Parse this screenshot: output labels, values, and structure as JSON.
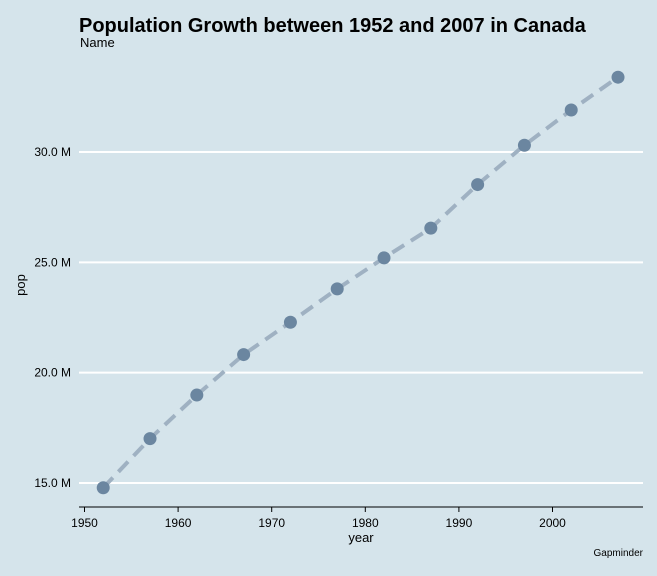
{
  "chart_data": {
    "type": "line",
    "title": "Population Growth between 1952 and 2007 in Canada",
    "legend_title": "Name",
    "caption": "Gapminder",
    "xlabel": "year",
    "ylabel": "pop",
    "x": [
      1952,
      1957,
      1962,
      1967,
      1972,
      1977,
      1982,
      1987,
      1992,
      1997,
      2002,
      2007
    ],
    "series": [
      {
        "values": [
          14785584,
          17010154,
          18985849,
          20819767,
          22284500,
          23796400,
          25201900,
          26549700,
          28523502,
          30305843,
          31902268,
          33390141
        ]
      }
    ],
    "xticks": [
      1950,
      1960,
      1970,
      1980,
      1990,
      2000
    ],
    "xtick_labels": [
      "1950",
      "1960",
      "1970",
      "1980",
      "1990",
      "2000"
    ],
    "yticks": [
      15000000,
      20000000,
      25000000,
      30000000
    ],
    "ytick_labels": [
      "15.0 M",
      "20.0 M",
      "25.0 M",
      "30.0 M"
    ],
    "xlim": [
      1949.5,
      2009.5
    ],
    "ylim": [
      14000000,
      34000000
    ],
    "grid": "horizontal",
    "line_style": "dashed",
    "colors": {
      "background": "#d5e4eb",
      "gridline": "#ffffff",
      "line": "#9fb1c2",
      "point": "#6b86a0"
    }
  }
}
